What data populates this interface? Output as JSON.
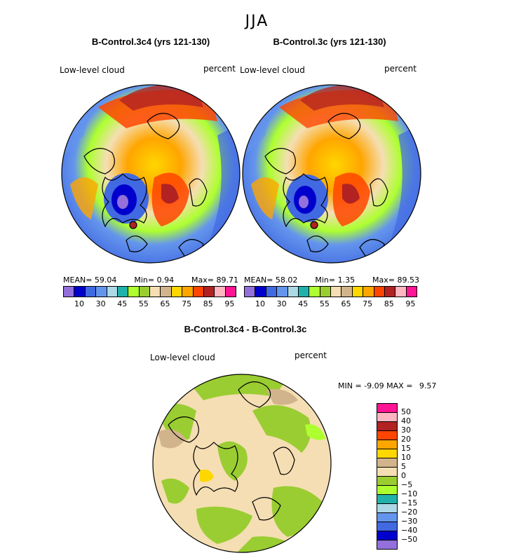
{
  "title": "JJA",
  "panels": [
    {
      "title": "B-Control.3c4 (yrs 121-130)",
      "field": "Low-level cloud",
      "units": "percent",
      "mean_label": "MEAN=",
      "mean": "59.04",
      "min_label": "Min=",
      "min": "0.94",
      "max_label": "Max=",
      "max": "89.71"
    },
    {
      "title": "B-Control.3c (yrs 121-130)",
      "field": "Low-level cloud",
      "units": "percent",
      "mean_label": "MEAN=",
      "mean": "58.02",
      "min_label": "Min=",
      "min": "1.35",
      "max_label": "Max=",
      "max": "89.53"
    }
  ],
  "diff": {
    "title": "B-Control.3c4 - B-Control.3c",
    "field": "Low-level cloud",
    "units": "percent",
    "min_label": "MIN =",
    "min": "-9.09",
    "max_label": "MAX =",
    "max": "9.57"
  },
  "colorbar_abs": {
    "colors": [
      "#9370db",
      "#0000cd",
      "#4169e1",
      "#6495ed",
      "#add8e6",
      "#20b2aa",
      "#adff2f",
      "#9acd32",
      "#f5deb3",
      "#d2b48c",
      "#ffd700",
      "#ffa500",
      "#ff4500",
      "#b22222",
      "#ffb6c1",
      "#ff1493"
    ],
    "labels": [
      "10",
      "30",
      "45",
      "55",
      "65",
      "75",
      "85",
      "95"
    ]
  },
  "colorbar_diff": {
    "colors": [
      "#ff1493",
      "#ffb6c1",
      "#b22222",
      "#ff4500",
      "#ffa500",
      "#ffd700",
      "#d2b48c",
      "#f5deb3",
      "#9acd32",
      "#adff2f",
      "#20b2aa",
      "#add8e6",
      "#6495ed",
      "#4169e1",
      "#0000cd",
      "#9370db"
    ],
    "labels": [
      "50",
      "40",
      "30",
      "20",
      "15",
      "10",
      "5",
      "0",
      "−5",
      "−10",
      "−15",
      "−20",
      "−30",
      "−40",
      "−50"
    ]
  },
  "map_palette": {
    "ocean": "#6b8fe0",
    "ocean_light": "#7ab0f0",
    "land": "#e8c9a0",
    "coast": "#000000"
  }
}
